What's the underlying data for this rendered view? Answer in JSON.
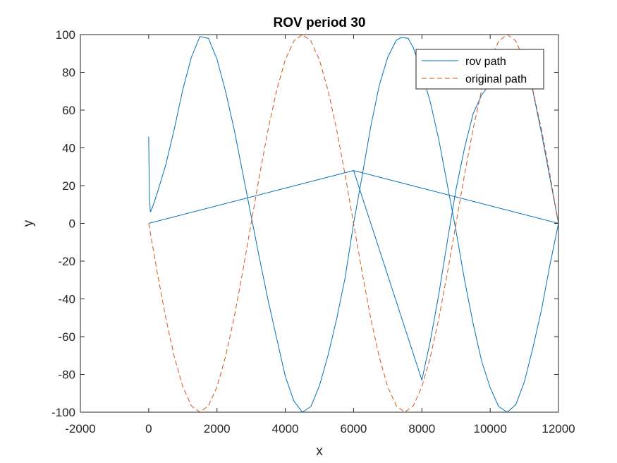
{
  "chart_data": {
    "type": "line",
    "title": "ROV period 30",
    "xlabel": "x",
    "ylabel": "y",
    "xlim": [
      -2000,
      12000
    ],
    "ylim": [
      -100,
      100
    ],
    "xticks": [
      -2000,
      0,
      2000,
      4000,
      6000,
      8000,
      10000,
      12000
    ],
    "yticks": [
      -100,
      -80,
      -60,
      -40,
      -20,
      0,
      20,
      40,
      60,
      80,
      100
    ],
    "xtick_labels": [
      "-2000",
      "0",
      "2000",
      "4000",
      "6000",
      "8000",
      "10000",
      "12000"
    ],
    "ytick_labels": [
      "-100",
      "-80",
      "-60",
      "-40",
      "-20",
      "0",
      "20",
      "40",
      "60",
      "80",
      "100"
    ],
    "grid": false,
    "legend": {
      "position": "top-right",
      "entries": [
        "rov path",
        "original path"
      ]
    },
    "series": [
      {
        "name": "rov path",
        "color": "#0072BD",
        "style": "solid",
        "points": [
          [
            0,
            46
          ],
          [
            10,
            30
          ],
          [
            20,
            14
          ],
          [
            50,
            6
          ],
          [
            120,
            9
          ],
          [
            250,
            16
          ],
          [
            500,
            31
          ],
          [
            750,
            50
          ],
          [
            1000,
            71
          ],
          [
            1250,
            88
          ],
          [
            1500,
            99
          ],
          [
            1750,
            98
          ],
          [
            2000,
            87
          ],
          [
            2250,
            70
          ],
          [
            2500,
            50
          ],
          [
            2750,
            27
          ],
          [
            3000,
            4
          ],
          [
            3250,
            -19
          ],
          [
            3500,
            -41
          ],
          [
            3750,
            -61
          ],
          [
            4000,
            -81
          ],
          [
            4250,
            -94
          ],
          [
            4500,
            -100
          ],
          [
            4750,
            -97
          ],
          [
            5000,
            -86
          ],
          [
            5250,
            -70
          ],
          [
            5500,
            -51
          ],
          [
            5750,
            -29
          ],
          [
            6000,
            0
          ],
          [
            6250,
            25
          ],
          [
            6500,
            51
          ],
          [
            6750,
            73
          ],
          [
            7000,
            88
          ],
          [
            7250,
            97
          ],
          [
            7400,
            98.5
          ],
          [
            7600,
            98
          ],
          [
            7750,
            93
          ],
          [
            8000,
            80
          ],
          [
            8250,
            64
          ],
          [
            8500,
            44
          ],
          [
            8750,
            20
          ],
          [
            9000,
            -4
          ],
          [
            9250,
            -30
          ],
          [
            9500,
            -53
          ],
          [
            9750,
            -73
          ],
          [
            10000,
            -87
          ],
          [
            10250,
            -97
          ],
          [
            10500,
            -100
          ],
          [
            10750,
            -96
          ],
          [
            11000,
            -84
          ],
          [
            11250,
            -66
          ],
          [
            11500,
            -46
          ],
          [
            11750,
            -22
          ],
          [
            12000,
            0
          ],
          [
            6000,
            28
          ],
          [
            0,
            0
          ],
          [
            6000,
            28
          ],
          [
            8000,
            -83
          ],
          [
            8250,
            -62
          ],
          [
            8500,
            -37
          ],
          [
            8750,
            -9
          ],
          [
            9000,
            18
          ],
          [
            9250,
            40
          ],
          [
            9500,
            58
          ],
          [
            9750,
            68
          ],
          [
            10000,
            74
          ],
          [
            10250,
            80
          ],
          [
            10500,
            86
          ],
          [
            10750,
            89
          ],
          [
            11000,
            85
          ],
          [
            11250,
            70
          ],
          [
            11500,
            48
          ],
          [
            11750,
            24
          ],
          [
            12000,
            0
          ]
        ]
      },
      {
        "name": "original path",
        "color": "#D95319",
        "style": "dashed",
        "function": "y = -100*sin(2*pi*x/6000)",
        "points": [
          [
            0,
            0
          ],
          [
            250,
            -25.9
          ],
          [
            500,
            -50
          ],
          [
            750,
            -70.7
          ],
          [
            1000,
            -86.6
          ],
          [
            1250,
            -96.6
          ],
          [
            1500,
            -100
          ],
          [
            1750,
            -96.6
          ],
          [
            2000,
            -86.6
          ],
          [
            2250,
            -70.7
          ],
          [
            2500,
            -50
          ],
          [
            2750,
            -25.9
          ],
          [
            3000,
            0
          ],
          [
            3250,
            25.9
          ],
          [
            3500,
            50
          ],
          [
            3750,
            70.7
          ],
          [
            4000,
            86.6
          ],
          [
            4250,
            96.6
          ],
          [
            4500,
            100
          ],
          [
            4750,
            96.6
          ],
          [
            5000,
            86.6
          ],
          [
            5250,
            70.7
          ],
          [
            5500,
            50
          ],
          [
            5750,
            25.9
          ],
          [
            6000,
            0
          ],
          [
            6250,
            -25.9
          ],
          [
            6500,
            -50
          ],
          [
            6750,
            -70.7
          ],
          [
            7000,
            -86.6
          ],
          [
            7250,
            -96.6
          ],
          [
            7500,
            -100
          ],
          [
            7750,
            -96.6
          ],
          [
            8000,
            -86.6
          ],
          [
            8250,
            -70.7
          ],
          [
            8500,
            -50
          ],
          [
            8750,
            -25.9
          ],
          [
            9000,
            0
          ],
          [
            9250,
            25.9
          ],
          [
            9500,
            50
          ],
          [
            9750,
            70.7
          ],
          [
            10000,
            86.6
          ],
          [
            10250,
            96.6
          ],
          [
            10500,
            100
          ],
          [
            10750,
            96.6
          ],
          [
            11000,
            86.6
          ],
          [
            11250,
            70.7
          ],
          [
            11500,
            50
          ],
          [
            11750,
            25.9
          ],
          [
            12000,
            0
          ]
        ]
      }
    ]
  }
}
